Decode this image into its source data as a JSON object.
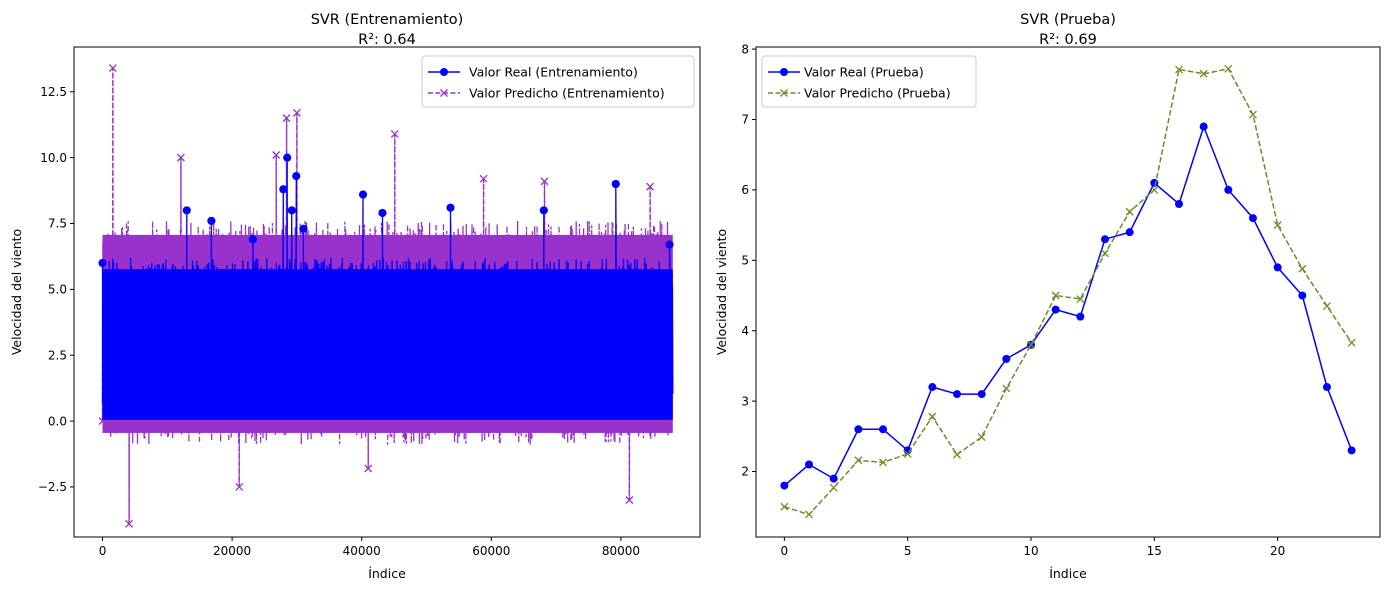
{
  "chart_data": [
    {
      "type": "line",
      "title": "SVR (Entrenamiento)",
      "subtitle": "R²: 0.64",
      "xlabel": "Índice",
      "ylabel": "Velocidad del viento",
      "xlim": [
        -4400,
        92200
      ],
      "ylim": [
        -4.4,
        14.2
      ],
      "xticks": [
        0,
        20000,
        40000,
        60000,
        80000
      ],
      "xtick_labels": [
        "0",
        "20000",
        "40000",
        "60000",
        "80000"
      ],
      "yticks": [
        -2.5,
        0.0,
        2.5,
        5.0,
        7.5,
        10.0,
        12.5
      ],
      "ytick_labels": [
        "−2.5",
        "0.0",
        "2.5",
        "5.0",
        "7.5",
        "10.0",
        "12.5"
      ],
      "grid": false,
      "legend_position": "top-right",
      "x_range": [
        0,
        88000
      ],
      "series": [
        {
          "name": "Valor Real (Entrenamiento)",
          "color": "#0000ff",
          "linestyle": "solid",
          "marker": "circle",
          "band": [
            0.1,
            6.2
          ],
          "outliers": [
            {
              "x": 0,
              "y": 6.0
            },
            {
              "x": 13000,
              "y": 8.0
            },
            {
              "x": 16800,
              "y": 7.6
            },
            {
              "x": 23200,
              "y": 6.9
            },
            {
              "x": 27900,
              "y": 8.8
            },
            {
              "x": 28500,
              "y": 10.0
            },
            {
              "x": 29200,
              "y": 8.0
            },
            {
              "x": 29900,
              "y": 9.3
            },
            {
              "x": 31000,
              "y": 7.3
            },
            {
              "x": 40200,
              "y": 8.6
            },
            {
              "x": 43200,
              "y": 7.9
            },
            {
              "x": 53700,
              "y": 8.1
            },
            {
              "x": 68100,
              "y": 8.0
            },
            {
              "x": 79200,
              "y": 9.0
            },
            {
              "x": 87500,
              "y": 6.7
            }
          ]
        },
        {
          "name": "Valor Predicho (Entrenamiento)",
          "color": "#9932cc",
          "linestyle": "dashed",
          "marker": "x",
          "band": [
            -0.9,
            7.6
          ],
          "spikes": [
            {
              "x": 1600,
              "y": 13.4
            },
            {
              "x": 4100,
              "y": -3.9
            },
            {
              "x": 12100,
              "y": 10.0
            },
            {
              "x": 21100,
              "y": -2.5
            },
            {
              "x": 26800,
              "y": 10.1
            },
            {
              "x": 28400,
              "y": 11.5
            },
            {
              "x": 30000,
              "y": 11.7
            },
            {
              "x": 41000,
              "y": -1.8
            },
            {
              "x": 45100,
              "y": 10.9
            },
            {
              "x": 58800,
              "y": 9.2
            },
            {
              "x": 68200,
              "y": 9.1
            },
            {
              "x": 81300,
              "y": -3.0
            },
            {
              "x": 84500,
              "y": 8.9
            },
            {
              "x": 0,
              "y": 0.0
            }
          ]
        }
      ]
    },
    {
      "type": "line",
      "title": "SVR (Prueba)",
      "subtitle": "R²: 0.69",
      "xlabel": "Índice",
      "ylabel": "Velocidad del viento",
      "xlim": [
        -1.15,
        24.15
      ],
      "ylim": [
        1.07,
        8.03
      ],
      "xticks": [
        0,
        5,
        10,
        15,
        20
      ],
      "xtick_labels": [
        "0",
        "5",
        "10",
        "15",
        "20"
      ],
      "yticks": [
        2,
        3,
        4,
        5,
        6,
        7,
        8
      ],
      "ytick_labels": [
        "2",
        "3",
        "4",
        "5",
        "6",
        "7",
        "8"
      ],
      "grid": false,
      "legend_position": "top-left",
      "x": [
        0,
        1,
        2,
        3,
        4,
        5,
        6,
        7,
        8,
        9,
        10,
        11,
        12,
        13,
        14,
        15,
        16,
        17,
        18,
        19,
        20,
        21,
        22,
        23
      ],
      "series": [
        {
          "name": "Valor Real (Prueba)",
          "color": "#0000ff",
          "linestyle": "solid",
          "marker": "circle",
          "values": [
            1.8,
            2.1,
            1.9,
            2.6,
            2.6,
            2.3,
            3.2,
            3.1,
            3.1,
            3.6,
            3.8,
            4.3,
            4.2,
            5.3,
            5.4,
            6.1,
            5.8,
            6.9,
            6.0,
            5.6,
            4.9,
            4.5,
            3.2,
            2.3
          ]
        },
        {
          "name": "Valor Predicho (Prueba)",
          "color": "#6b8e23",
          "linestyle": "dashed",
          "marker": "x",
          "values": [
            1.5,
            1.39,
            1.77,
            2.16,
            2.13,
            2.25,
            2.78,
            2.24,
            2.49,
            3.18,
            3.8,
            4.5,
            4.45,
            5.1,
            5.69,
            6.0,
            7.71,
            7.65,
            7.72,
            7.07,
            5.5,
            4.88,
            4.35,
            3.83
          ]
        }
      ]
    }
  ]
}
